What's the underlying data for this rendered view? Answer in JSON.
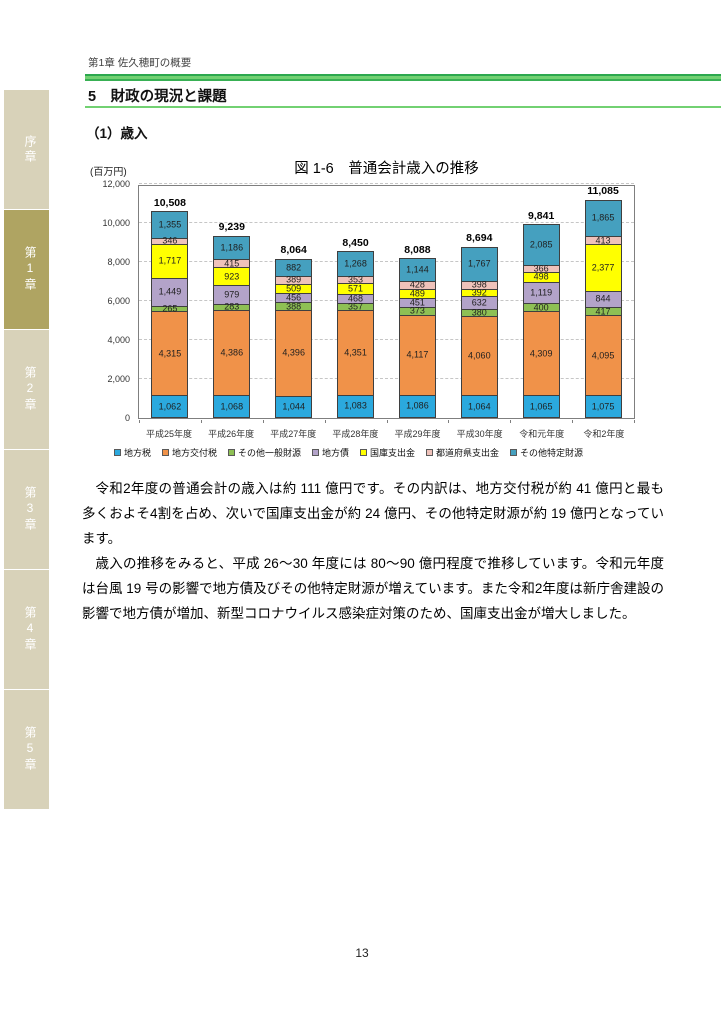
{
  "page": {
    "header": "第1章 佐久穂町の概要",
    "section_title": "5　財政の現況と課題",
    "subsection_title": "（1）歳入",
    "page_number": "13"
  },
  "sidebar": {
    "items": [
      {
        "label": "序章",
        "active": false
      },
      {
        "label": "第1章",
        "active": true
      },
      {
        "label": "第2章",
        "active": false
      },
      {
        "label": "第3章",
        "active": false
      },
      {
        "label": "第4章",
        "active": false
      },
      {
        "label": "第5章",
        "active": false
      }
    ],
    "inactive_color": "#d8d2b9",
    "active_color": "#afa462"
  },
  "chart_data": {
    "type": "bar",
    "stacked": true,
    "title": "図 1-6　普通会計歳入の推移",
    "unit_label": "(百万円)",
    "categories": [
      "平成25年度",
      "平成26年度",
      "平成27年度",
      "平成28年度",
      "平成29年度",
      "平成30年度",
      "令和元年度",
      "令和2年度"
    ],
    "series": [
      {
        "name": "地方税",
        "color": "#2ba9de",
        "values": [
          1062,
          1068,
          1044,
          1083,
          1086,
          1064,
          1065,
          1075
        ]
      },
      {
        "name": "地方交付税",
        "color": "#f09249",
        "values": [
          4315,
          4386,
          4396,
          4351,
          4117,
          4060,
          4309,
          4095
        ]
      },
      {
        "name": "その他一般財源",
        "color": "#8ec054",
        "values": [
          265,
          283,
          388,
          357,
          373,
          380,
          400,
          417
        ]
      },
      {
        "name": "地方債",
        "color": "#b3a3c9",
        "values": [
          1449,
          979,
          456,
          468,
          451,
          632,
          1119,
          844
        ]
      },
      {
        "name": "国庫支出金",
        "color": "#ffff00",
        "values": [
          1717,
          923,
          509,
          571,
          489,
          392,
          498,
          2377
        ]
      },
      {
        "name": "都道府県支出金",
        "color": "#efc2ba",
        "values": [
          346,
          415,
          389,
          353,
          428,
          398,
          366,
          413
        ]
      },
      {
        "name": "その他特定財源",
        "color": "#45a0bf",
        "values": [
          1355,
          1186,
          882,
          1268,
          1144,
          1767,
          2085,
          1865
        ]
      }
    ],
    "totals": [
      10508,
      9239,
      8064,
      8450,
      8088,
      8694,
      9841,
      11085
    ],
    "ylim": [
      0,
      12000
    ],
    "yticks": [
      0,
      2000,
      4000,
      6000,
      8000,
      10000,
      12000
    ],
    "grid": "dashed-horizontal",
    "legend_position": "bottom"
  },
  "body": {
    "paragraphs": [
      "令和2年度の普通会計の歳入は約 111 億円です。その内訳は、地方交付税が約 41 億円と最も多くおよそ4割を占め、次いで国庫支出金が約 24 億円、その他特定財源が約 19 億円となっています。",
      "歳入の推移をみると、平成 26～30 年度には 80～90 億円程度で推移しています。令和元年度は台風 19 号の影響で地方債及びその他特定財源が増えています。また令和2年度は新庁舎建設の影響で地方債が増加、新型コロナウイルス感染症対策のため、国庫支出金が増大しました。"
    ]
  }
}
